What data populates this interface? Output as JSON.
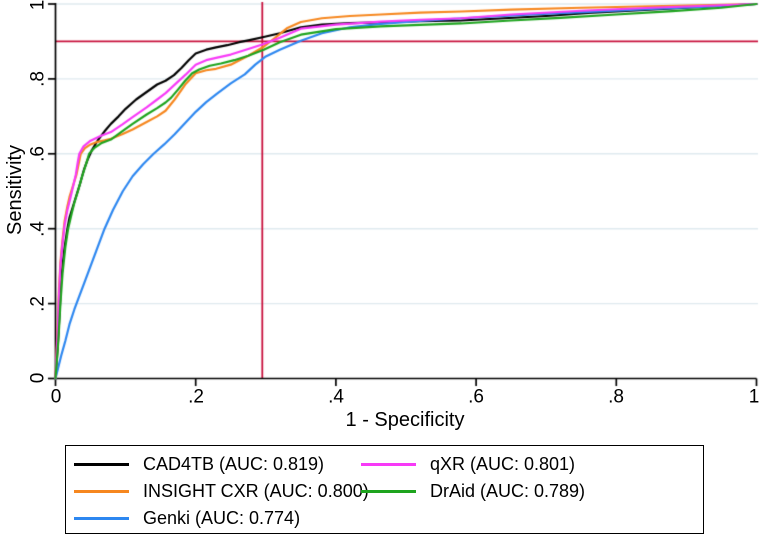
{
  "figure": {
    "ylabel": "Sensitivity",
    "xlabel": "1 - Specificity",
    "y_ticks": [
      "0",
      ".2",
      ".4",
      ".6",
      ".8",
      "1"
    ],
    "x_ticks": [
      "0",
      ".2",
      ".4",
      ".6",
      ".8",
      "1"
    ]
  },
  "chart_data": {
    "type": "line",
    "subtype": "roc-curves",
    "title": "",
    "xlabel": "1 - Specificity",
    "ylabel": "Sensitivity",
    "xlim": [
      0,
      1
    ],
    "ylim": [
      0,
      1
    ],
    "x_tick_values": [
      0,
      0.2,
      0.4,
      0.6,
      0.8,
      1
    ],
    "y_tick_values": [
      0,
      0.2,
      0.4,
      0.6,
      0.8,
      1
    ],
    "grid": "horizontal",
    "gridline_color": "#dfeaef",
    "axis_color": "#000000",
    "reference_lines": {
      "color": "#c8103c",
      "x": 0.295,
      "y": 0.9
    },
    "legend_position": "bottom",
    "legend_columns": 2,
    "series": [
      {
        "name": "CAD4TB",
        "auc": "0.819",
        "label": "CAD4TB (AUC: 0.819)",
        "color": "#000000",
        "points": [
          [
            0,
            0
          ],
          [
            0.003,
            0.08
          ],
          [
            0.006,
            0.18
          ],
          [
            0.008,
            0.26
          ],
          [
            0.01,
            0.3
          ],
          [
            0.013,
            0.35
          ],
          [
            0.017,
            0.4
          ],
          [
            0.02,
            0.43
          ],
          [
            0.025,
            0.46
          ],
          [
            0.03,
            0.49
          ],
          [
            0.035,
            0.52
          ],
          [
            0.041,
            0.56
          ],
          [
            0.046,
            0.585
          ],
          [
            0.052,
            0.61
          ],
          [
            0.06,
            0.635
          ],
          [
            0.07,
            0.66
          ],
          [
            0.079,
            0.68
          ],
          [
            0.09,
            0.7
          ],
          [
            0.1,
            0.72
          ],
          [
            0.115,
            0.745
          ],
          [
            0.13,
            0.765
          ],
          [
            0.145,
            0.785
          ],
          [
            0.157,
            0.795
          ],
          [
            0.169,
            0.81
          ],
          [
            0.18,
            0.83
          ],
          [
            0.19,
            0.85
          ],
          [
            0.2,
            0.868
          ],
          [
            0.215,
            0.878
          ],
          [
            0.229,
            0.884
          ],
          [
            0.245,
            0.89
          ],
          [
            0.262,
            0.898
          ],
          [
            0.275,
            0.903
          ],
          [
            0.297,
            0.912
          ],
          [
            0.32,
            0.922
          ],
          [
            0.35,
            0.938
          ],
          [
            0.38,
            0.945
          ],
          [
            0.42,
            0.949
          ],
          [
            0.464,
            0.951
          ],
          [
            0.52,
            0.954
          ],
          [
            0.579,
            0.956
          ],
          [
            0.64,
            0.962
          ],
          [
            0.7,
            0.968
          ],
          [
            0.76,
            0.976
          ],
          [
            0.82,
            0.982
          ],
          [
            0.88,
            0.988
          ],
          [
            0.94,
            0.994
          ],
          [
            1,
            1
          ]
        ]
      },
      {
        "name": "INSIGHT CXR",
        "auc": "0.800",
        "label": "INSIGHT CXR (AUC: 0.800)",
        "color": "#f6871f",
        "points": [
          [
            0,
            0
          ],
          [
            0.003,
            0.14
          ],
          [
            0.005,
            0.24
          ],
          [
            0.007,
            0.31
          ],
          [
            0.01,
            0.37
          ],
          [
            0.013,
            0.42
          ],
          [
            0.017,
            0.46
          ],
          [
            0.02,
            0.485
          ],
          [
            0.025,
            0.515
          ],
          [
            0.03,
            0.545
          ],
          [
            0.036,
            0.6
          ],
          [
            0.042,
            0.615
          ],
          [
            0.05,
            0.625
          ],
          [
            0.06,
            0.632
          ],
          [
            0.07,
            0.636
          ],
          [
            0.079,
            0.64
          ],
          [
            0.095,
            0.652
          ],
          [
            0.11,
            0.665
          ],
          [
            0.13,
            0.685
          ],
          [
            0.145,
            0.7
          ],
          [
            0.157,
            0.715
          ],
          [
            0.17,
            0.745
          ],
          [
            0.185,
            0.785
          ],
          [
            0.2,
            0.815
          ],
          [
            0.215,
            0.823
          ],
          [
            0.229,
            0.827
          ],
          [
            0.25,
            0.838
          ],
          [
            0.275,
            0.862
          ],
          [
            0.297,
            0.886
          ],
          [
            0.315,
            0.912
          ],
          [
            0.33,
            0.935
          ],
          [
            0.35,
            0.952
          ],
          [
            0.38,
            0.962
          ],
          [
            0.42,
            0.968
          ],
          [
            0.464,
            0.972
          ],
          [
            0.52,
            0.977
          ],
          [
            0.579,
            0.98
          ],
          [
            0.65,
            0.985
          ],
          [
            0.75,
            0.99
          ],
          [
            0.85,
            0.994
          ],
          [
            1,
            1
          ]
        ]
      },
      {
        "name": "Genki",
        "auc": "0.774",
        "label": "Genki (AUC: 0.774)",
        "color": "#2d87f0",
        "points": [
          [
            0,
            0
          ],
          [
            0.004,
            0.03
          ],
          [
            0.008,
            0.06
          ],
          [
            0.014,
            0.1
          ],
          [
            0.02,
            0.145
          ],
          [
            0.027,
            0.185
          ],
          [
            0.033,
            0.215
          ],
          [
            0.04,
            0.25
          ],
          [
            0.048,
            0.29
          ],
          [
            0.058,
            0.34
          ],
          [
            0.07,
            0.4
          ],
          [
            0.082,
            0.45
          ],
          [
            0.096,
            0.5
          ],
          [
            0.11,
            0.54
          ],
          [
            0.125,
            0.572
          ],
          [
            0.14,
            0.6
          ],
          [
            0.155,
            0.625
          ],
          [
            0.17,
            0.652
          ],
          [
            0.185,
            0.682
          ],
          [
            0.2,
            0.712
          ],
          [
            0.215,
            0.738
          ],
          [
            0.23,
            0.76
          ],
          [
            0.25,
            0.788
          ],
          [
            0.27,
            0.812
          ],
          [
            0.285,
            0.838
          ],
          [
            0.3,
            0.86
          ],
          [
            0.32,
            0.878
          ],
          [
            0.35,
            0.902
          ],
          [
            0.38,
            0.922
          ],
          [
            0.42,
            0.938
          ],
          [
            0.464,
            0.947
          ],
          [
            0.52,
            0.955
          ],
          [
            0.6,
            0.964
          ],
          [
            0.68,
            0.972
          ],
          [
            0.76,
            0.979
          ],
          [
            0.85,
            0.987
          ],
          [
            0.93,
            0.993
          ],
          [
            1,
            1
          ]
        ]
      },
      {
        "name": "qXR",
        "auc": "0.801",
        "label": "qXR (AUC: 0.801)",
        "color": "#f73af7",
        "points": [
          [
            0,
            0
          ],
          [
            0.003,
            0.12
          ],
          [
            0.005,
            0.22
          ],
          [
            0.007,
            0.3
          ],
          [
            0.01,
            0.36
          ],
          [
            0.013,
            0.41
          ],
          [
            0.017,
            0.45
          ],
          [
            0.021,
            0.48
          ],
          [
            0.026,
            0.52
          ],
          [
            0.029,
            0.545
          ],
          [
            0.032,
            0.58
          ],
          [
            0.034,
            0.6
          ],
          [
            0.04,
            0.62
          ],
          [
            0.05,
            0.635
          ],
          [
            0.065,
            0.648
          ],
          [
            0.079,
            0.658
          ],
          [
            0.095,
            0.678
          ],
          [
            0.11,
            0.698
          ],
          [
            0.13,
            0.724
          ],
          [
            0.145,
            0.745
          ],
          [
            0.157,
            0.762
          ],
          [
            0.172,
            0.788
          ],
          [
            0.186,
            0.812
          ],
          [
            0.2,
            0.838
          ],
          [
            0.215,
            0.85
          ],
          [
            0.229,
            0.856
          ],
          [
            0.25,
            0.865
          ],
          [
            0.275,
            0.88
          ],
          [
            0.297,
            0.893
          ],
          [
            0.32,
            0.91
          ],
          [
            0.35,
            0.934
          ],
          [
            0.4,
            0.945
          ],
          [
            0.464,
            0.953
          ],
          [
            0.52,
            0.958
          ],
          [
            0.579,
            0.962
          ],
          [
            0.65,
            0.972
          ],
          [
            0.75,
            0.982
          ],
          [
            0.85,
            0.99
          ],
          [
            1,
            1
          ]
        ]
      },
      {
        "name": "DrAid",
        "auc": "0.789",
        "label": "DrAid (AUC: 0.789)",
        "color": "#1ea41e",
        "points": [
          [
            0,
            0
          ],
          [
            0.004,
            0.1
          ],
          [
            0.007,
            0.2
          ],
          [
            0.01,
            0.28
          ],
          [
            0.014,
            0.35
          ],
          [
            0.018,
            0.4
          ],
          [
            0.023,
            0.44
          ],
          [
            0.027,
            0.47
          ],
          [
            0.032,
            0.5
          ],
          [
            0.038,
            0.54
          ],
          [
            0.044,
            0.575
          ],
          [
            0.048,
            0.6
          ],
          [
            0.055,
            0.615
          ],
          [
            0.065,
            0.628
          ],
          [
            0.079,
            0.638
          ],
          [
            0.095,
            0.66
          ],
          [
            0.11,
            0.68
          ],
          [
            0.13,
            0.705
          ],
          [
            0.145,
            0.722
          ],
          [
            0.157,
            0.737
          ],
          [
            0.165,
            0.75
          ],
          [
            0.175,
            0.772
          ],
          [
            0.185,
            0.795
          ],
          [
            0.195,
            0.815
          ],
          [
            0.205,
            0.825
          ],
          [
            0.22,
            0.835
          ],
          [
            0.236,
            0.841
          ],
          [
            0.255,
            0.85
          ],
          [
            0.275,
            0.862
          ],
          [
            0.297,
            0.878
          ],
          [
            0.32,
            0.898
          ],
          [
            0.35,
            0.918
          ],
          [
            0.4,
            0.933
          ],
          [
            0.464,
            0.94
          ],
          [
            0.52,
            0.944
          ],
          [
            0.579,
            0.948
          ],
          [
            0.65,
            0.956
          ],
          [
            0.72,
            0.963
          ],
          [
            0.8,
            0.972
          ],
          [
            0.88,
            0.981
          ],
          [
            0.95,
            0.99
          ],
          [
            1,
            1
          ]
        ]
      }
    ]
  }
}
